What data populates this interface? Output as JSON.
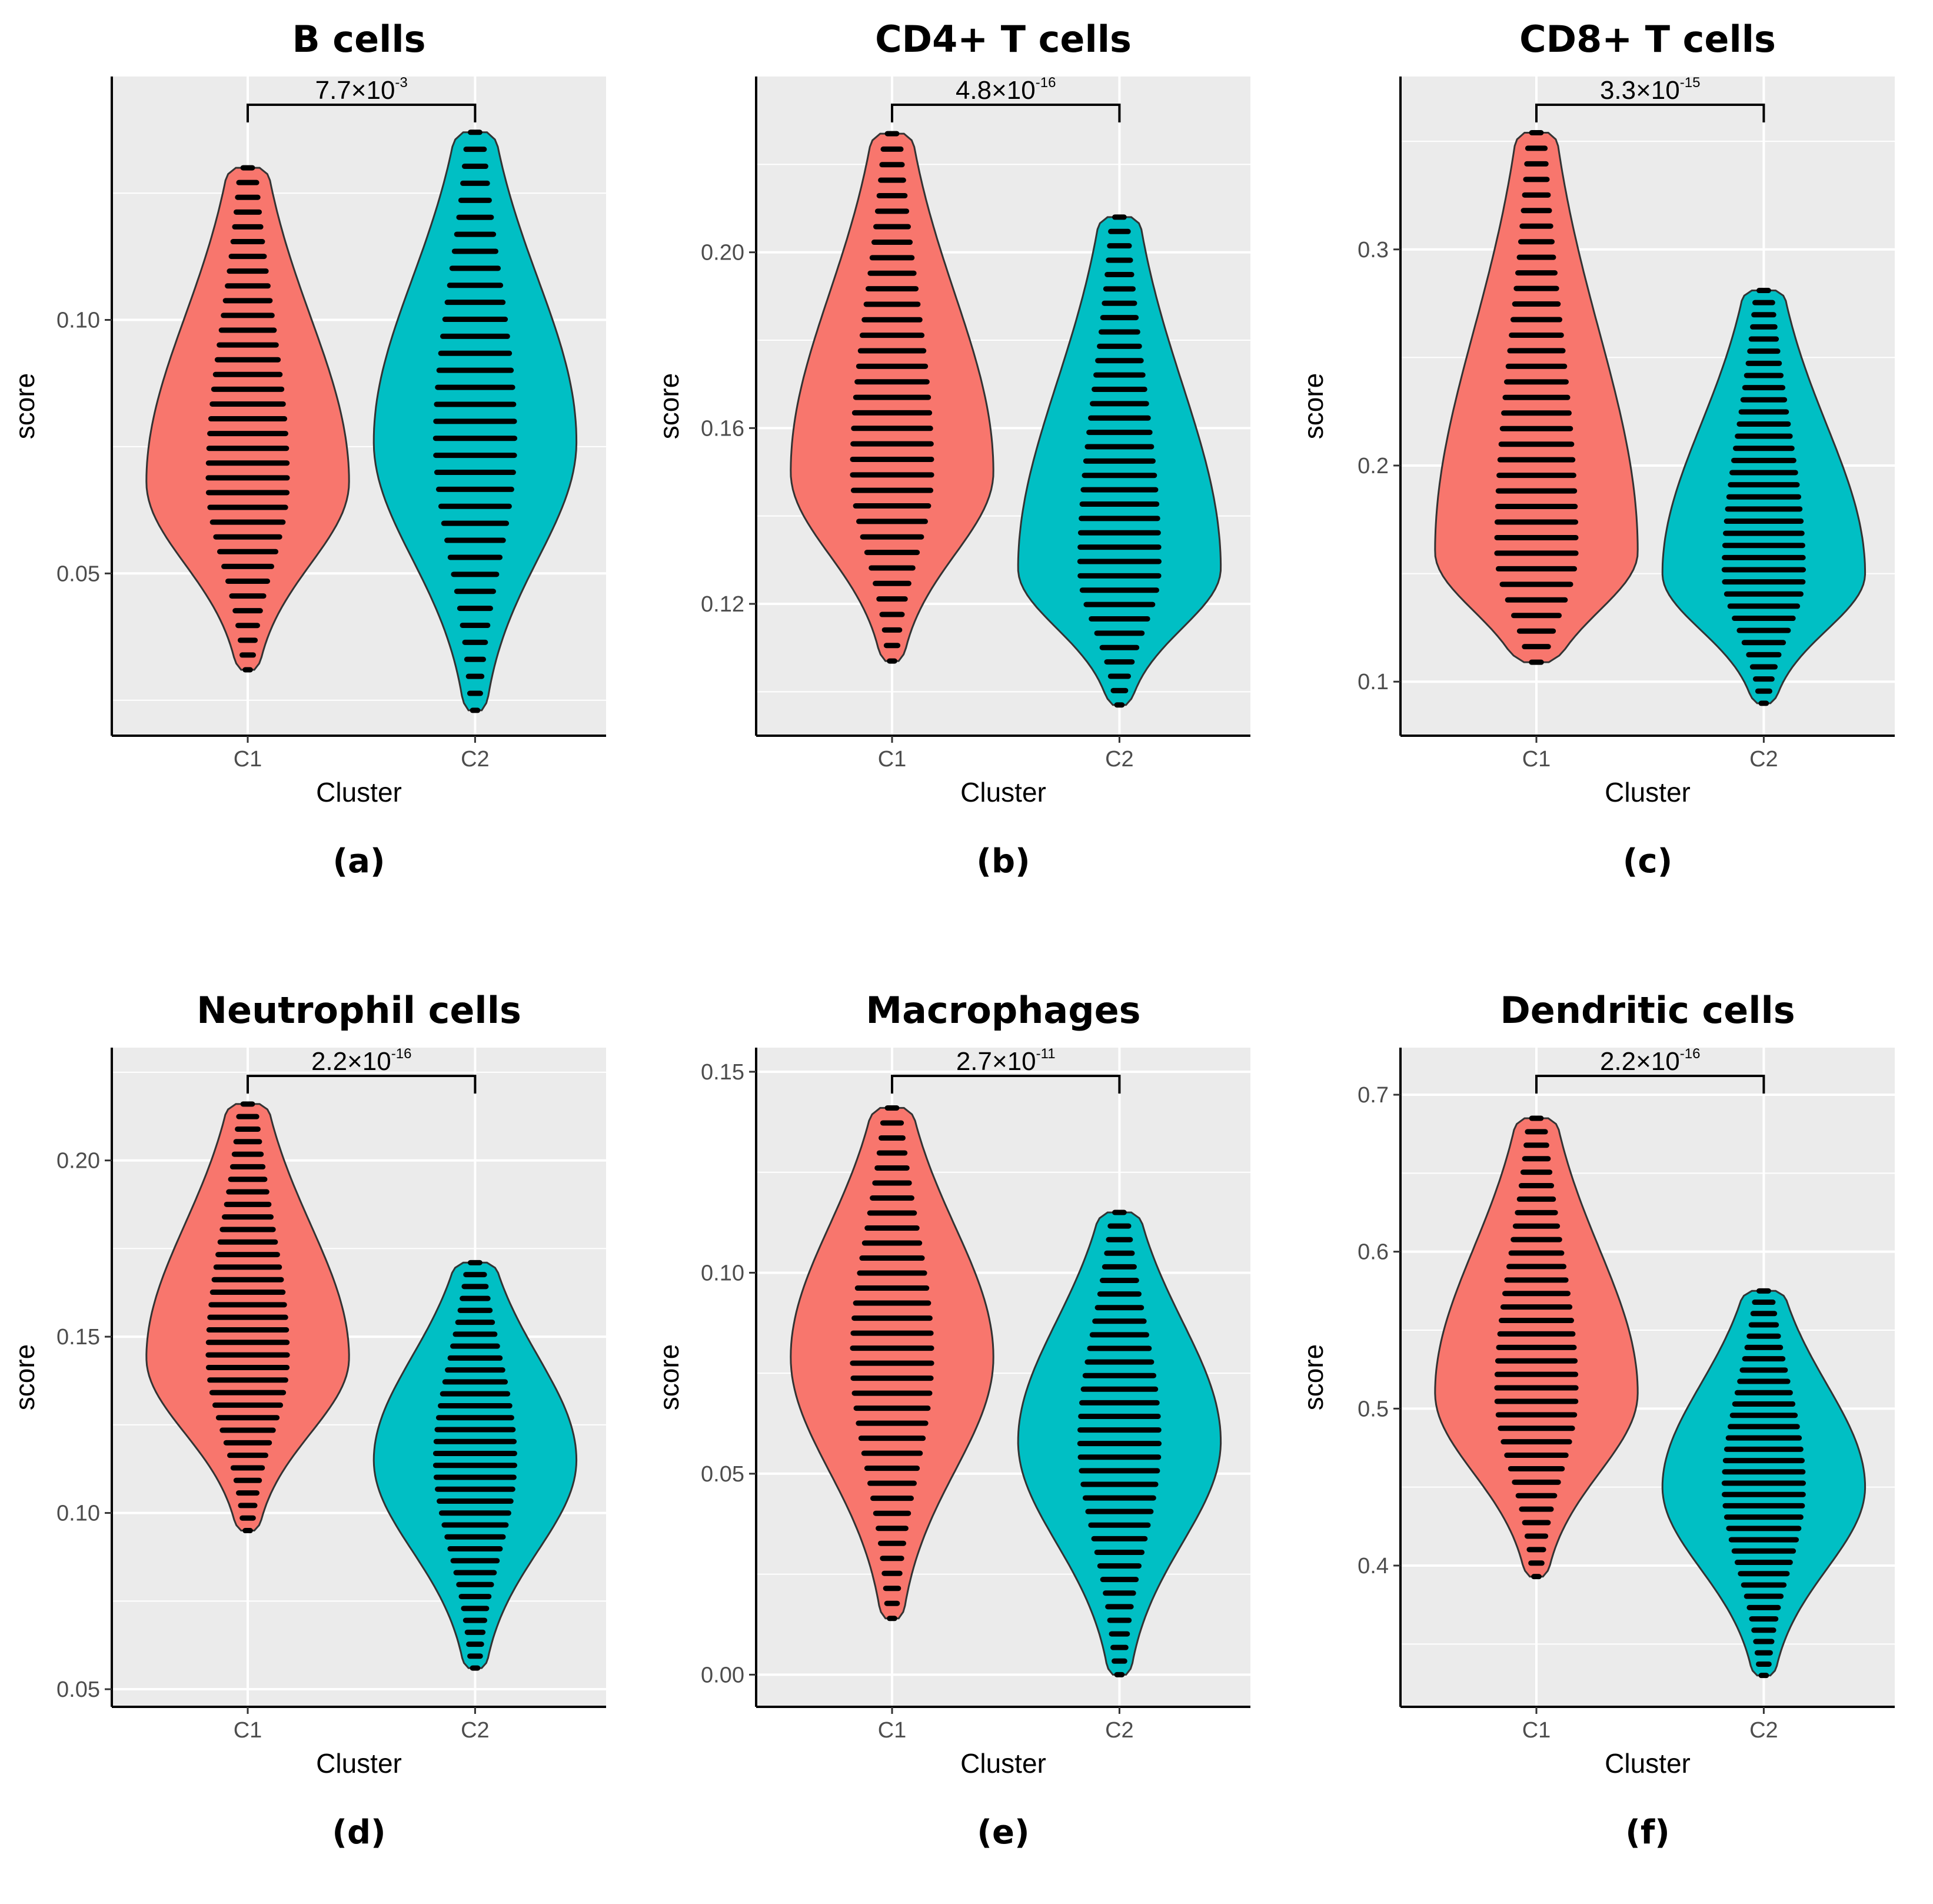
{
  "figure": {
    "sublabels": [
      "(a)",
      "(b)",
      "(c)",
      "(d)",
      "(e)",
      "(f)"
    ]
  },
  "colors": {
    "C1": "#F8766D",
    "C2": "#00BFC4",
    "panel_bg": "#EBEBEB",
    "gridline": "#FFFFFF",
    "dots": "#000000"
  },
  "chart_data": [
    {
      "type": "violin",
      "title": "B cells",
      "xlabel": "Cluster",
      "ylabel": "score",
      "categories": [
        "C1",
        "C2"
      ],
      "ylim": [
        0.018,
        0.148
      ],
      "yticks": [
        0.05,
        0.1
      ],
      "ytick_labels": [
        "0.05",
        "0.10"
      ],
      "p_value": {
        "mantissa": "7.7×10",
        "exponent": "-3",
        "text": "7.7×10-3"
      },
      "series": [
        {
          "name": "C1",
          "min": 0.031,
          "max": 0.13,
          "median": 0.073,
          "mode": 0.068
        },
        {
          "name": "C2",
          "min": 0.023,
          "max": 0.137,
          "median": 0.072,
          "mode": 0.076
        }
      ]
    },
    {
      "type": "violin",
      "title": "CD4+ T cells",
      "xlabel": "Cluster",
      "ylabel": "score",
      "categories": [
        "C1",
        "C2"
      ],
      "ylim": [
        0.09,
        0.24
      ],
      "yticks": [
        0.12,
        0.16,
        0.2
      ],
      "ytick_labels": [
        "0.12",
        "0.16",
        "0.20"
      ],
      "p_value": {
        "mantissa": "4.8×10",
        "exponent": "-16",
        "text": "4.8×10-16"
      },
      "series": [
        {
          "name": "C1",
          "min": 0.107,
          "max": 0.227,
          "median": 0.15,
          "mode": 0.15
        },
        {
          "name": "C2",
          "min": 0.097,
          "max": 0.208,
          "median": 0.134,
          "mode": 0.128
        }
      ]
    },
    {
      "type": "violin",
      "title": "CD8+ T cells",
      "xlabel": "Cluster",
      "ylabel": "score",
      "categories": [
        "C1",
        "C2"
      ],
      "ylim": [
        0.075,
        0.38
      ],
      "yticks": [
        0.1,
        0.2,
        0.3
      ],
      "ytick_labels": [
        "0.1",
        "0.2",
        "0.3"
      ],
      "p_value": {
        "mantissa": "3.3×10",
        "exponent": "-15",
        "text": "3.3×10-15"
      },
      "series": [
        {
          "name": "C1",
          "min": 0.109,
          "max": 0.354,
          "median": 0.178,
          "mode": 0.16
        },
        {
          "name": "C2",
          "min": 0.09,
          "max": 0.281,
          "median": 0.147,
          "mode": 0.15
        }
      ]
    },
    {
      "type": "violin",
      "title": "Neutrophil cells",
      "xlabel": "Cluster",
      "ylabel": "score",
      "categories": [
        "C1",
        "C2"
      ],
      "ylim": [
        0.045,
        0.232
      ],
      "yticks": [
        0.05,
        0.1,
        0.15,
        0.2
      ],
      "ytick_labels": [
        "0.05",
        "0.10",
        "0.15",
        "0.20"
      ],
      "p_value": {
        "mantissa": "2.2×10",
        "exponent": "-16",
        "text": "2.2×10-16"
      },
      "series": [
        {
          "name": "C1",
          "min": 0.095,
          "max": 0.216,
          "median": 0.142,
          "mode": 0.144
        },
        {
          "name": "C2",
          "min": 0.056,
          "max": 0.171,
          "median": 0.107,
          "mode": 0.115
        }
      ]
    },
    {
      "type": "violin",
      "title": "Macrophages",
      "xlabel": "Cluster",
      "ylabel": "score",
      "categories": [
        "C1",
        "C2"
      ],
      "ylim": [
        -0.008,
        0.156
      ],
      "yticks": [
        0.0,
        0.05,
        0.1,
        0.15
      ],
      "ytick_labels": [
        "0.00",
        "0.05",
        "0.10",
        "0.15"
      ],
      "p_value": {
        "mantissa": "2.7×10",
        "exponent": "-11",
        "text": "2.7×10-11"
      },
      "series": [
        {
          "name": "C1",
          "min": 0.014,
          "max": 0.141,
          "median": 0.068,
          "mode": 0.079
        },
        {
          "name": "C2",
          "min": 0.0,
          "max": 0.115,
          "median": 0.05,
          "mode": 0.058
        }
      ]
    },
    {
      "type": "violin",
      "title": "Dendritic cells",
      "xlabel": "Cluster",
      "ylabel": "score",
      "categories": [
        "C1",
        "C2"
      ],
      "ylim": [
        0.31,
        0.73
      ],
      "yticks": [
        0.4,
        0.5,
        0.6,
        0.7
      ],
      "ytick_labels": [
        "0.4",
        "0.5",
        "0.6",
        "0.7"
      ],
      "p_value": {
        "mantissa": "2.2×10",
        "exponent": "-16",
        "text": "2.2×10-16"
      },
      "series": [
        {
          "name": "C1",
          "min": 0.393,
          "max": 0.685,
          "median": 0.511,
          "mode": 0.51
        },
        {
          "name": "C2",
          "min": 0.33,
          "max": 0.575,
          "median": 0.45,
          "mode": 0.45
        }
      ]
    }
  ]
}
